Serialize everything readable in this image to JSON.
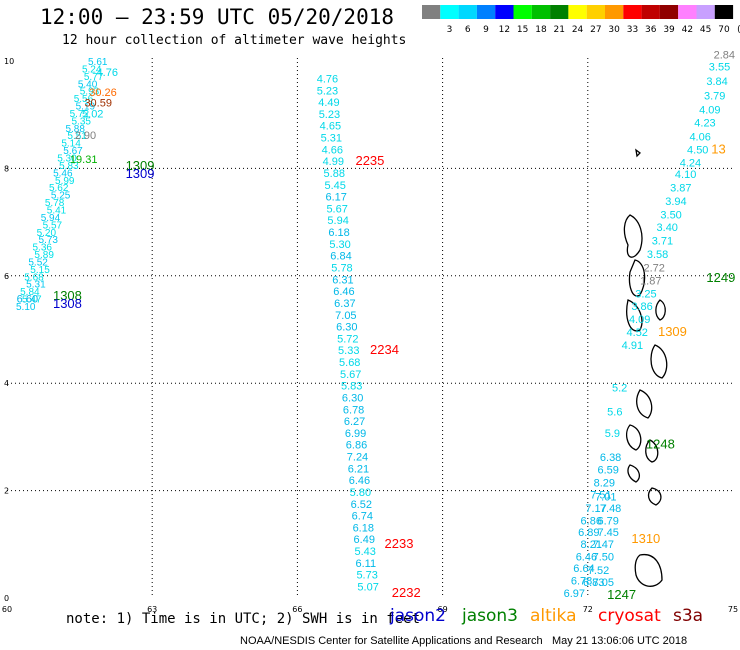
{
  "header": {
    "title": "12:00 – 23:59 UTC 05/20/2018",
    "subtitle": "12 hour collection of altimeter wave heights"
  },
  "colorbar": {
    "unit": "(ft)",
    "bins": [
      {
        "label": "",
        "color": "#808080"
      },
      {
        "label": "3",
        "color": "#00ffff"
      },
      {
        "label": "6",
        "color": "#00d8ff"
      },
      {
        "label": "9",
        "color": "#0080ff"
      },
      {
        "label": "12",
        "color": "#0000ff"
      },
      {
        "label": "15",
        "color": "#00ff00"
      },
      {
        "label": "18",
        "color": "#00c000"
      },
      {
        "label": "21",
        "color": "#008000"
      },
      {
        "label": "24",
        "color": "#ffff00"
      },
      {
        "label": "27",
        "color": "#ffd000"
      },
      {
        "label": "30",
        "color": "#ff9900"
      },
      {
        "label": "33",
        "color": "#ff0000"
      },
      {
        "label": "36",
        "color": "#c00000"
      },
      {
        "label": "39",
        "color": "#900000"
      },
      {
        "label": "42",
        "color": "#ff80ff"
      },
      {
        "label": "45",
        "color": "#c8a0ff"
      },
      {
        "label": "70",
        "color": "#000000"
      }
    ]
  },
  "axes": {
    "lon_ticks": [
      "60",
      "63",
      "66",
      "69",
      "72",
      "75"
    ],
    "lat_ticks": [
      "0",
      "2",
      "4",
      "6",
      "8",
      "10"
    ],
    "grid": true
  },
  "tracks": [
    {
      "id": "midpass",
      "sat": "cryosat",
      "points": [
        {
          "lon": 66.4,
          "lat": 9.6,
          "v": "4.76"
        },
        {
          "lon": 66.4,
          "lat": 9.38,
          "v": "5.23"
        },
        {
          "lon": 66.43,
          "lat": 9.16,
          "v": "4.49"
        },
        {
          "lon": 66.44,
          "lat": 8.94,
          "v": "5.23"
        },
        {
          "lon": 66.46,
          "lat": 8.72,
          "v": "4.65"
        },
        {
          "lon": 66.48,
          "lat": 8.5,
          "v": "5.31"
        },
        {
          "lon": 66.5,
          "lat": 8.28,
          "v": "4.66"
        },
        {
          "lon": 66.52,
          "lat": 8.06,
          "v": "4.99"
        },
        {
          "lon": 66.54,
          "lat": 7.84,
          "v": "5.88"
        },
        {
          "lon": 66.56,
          "lat": 7.62,
          "v": "5.45"
        },
        {
          "lon": 66.58,
          "lat": 7.4,
          "v": "6.17"
        },
        {
          "lon": 66.6,
          "lat": 7.18,
          "v": "5.67"
        },
        {
          "lon": 66.62,
          "lat": 6.96,
          "v": "5.94"
        },
        {
          "lon": 66.64,
          "lat": 6.74,
          "v": "6.18"
        },
        {
          "lon": 66.66,
          "lat": 6.52,
          "v": "5.30"
        },
        {
          "lon": 66.68,
          "lat": 6.3,
          "v": "6.84"
        },
        {
          "lon": 66.7,
          "lat": 6.08,
          "v": "5.78"
        },
        {
          "lon": 66.72,
          "lat": 5.86,
          "v": "6.31"
        },
        {
          "lon": 66.74,
          "lat": 5.64,
          "v": "6.46"
        },
        {
          "lon": 66.76,
          "lat": 5.42,
          "v": "6.37"
        },
        {
          "lon": 66.78,
          "lat": 5.2,
          "v": "7.05"
        },
        {
          "lon": 66.8,
          "lat": 4.98,
          "v": "6.30"
        },
        {
          "lon": 66.82,
          "lat": 4.76,
          "v": "5.72"
        },
        {
          "lon": 66.84,
          "lat": 4.54,
          "v": "5.33"
        },
        {
          "lon": 66.86,
          "lat": 4.32,
          "v": "5.68"
        },
        {
          "lon": 66.88,
          "lat": 4.1,
          "v": "5.67"
        },
        {
          "lon": 66.9,
          "lat": 3.88,
          "v": "5.83"
        },
        {
          "lon": 66.92,
          "lat": 3.66,
          "v": "6.30"
        },
        {
          "lon": 66.94,
          "lat": 3.44,
          "v": "6.78"
        },
        {
          "lon": 66.96,
          "lat": 3.22,
          "v": "6.27"
        },
        {
          "lon": 66.98,
          "lat": 3.0,
          "v": "6.99"
        },
        {
          "lon": 67.0,
          "lat": 2.78,
          "v": "6.86"
        },
        {
          "lon": 67.02,
          "lat": 2.56,
          "v": "7.24"
        },
        {
          "lon": 67.04,
          "lat": 2.34,
          "v": "6.21"
        },
        {
          "lon": 67.06,
          "lat": 2.12,
          "v": "6.46"
        },
        {
          "lon": 67.08,
          "lat": 1.9,
          "v": "5.80"
        },
        {
          "lon": 67.1,
          "lat": 1.68,
          "v": "6.52"
        },
        {
          "lon": 67.12,
          "lat": 1.46,
          "v": "6.74"
        },
        {
          "lon": 67.14,
          "lat": 1.24,
          "v": "6.18"
        },
        {
          "lon": 67.16,
          "lat": 1.02,
          "v": "6.49"
        },
        {
          "lon": 67.18,
          "lat": 0.8,
          "v": "5.43"
        },
        {
          "lon": 67.2,
          "lat": 0.58,
          "v": "6.11"
        },
        {
          "lon": 67.22,
          "lat": 0.36,
          "v": "5.73"
        },
        {
          "lon": 67.24,
          "lat": 0.14,
          "v": "5.07"
        }
      ]
    },
    {
      "id": "eastpass",
      "sat": "cryosat",
      "points": [
        {
          "lon": 74.6,
          "lat": 10.05,
          "v": "2.84"
        },
        {
          "lon": 74.5,
          "lat": 9.82,
          "v": "3.55"
        },
        {
          "lon": 74.45,
          "lat": 9.55,
          "v": "3.84"
        },
        {
          "lon": 74.4,
          "lat": 9.28,
          "v": "3.79"
        },
        {
          "lon": 74.3,
          "lat": 9.02,
          "v": "4.09"
        },
        {
          "lon": 74.2,
          "lat": 8.78,
          "v": "4.23"
        },
        {
          "lon": 74.1,
          "lat": 8.52,
          "v": "4.06"
        },
        {
          "lon": 74.05,
          "lat": 8.28,
          "v": "4.50"
        },
        {
          "lon": 73.9,
          "lat": 8.04,
          "v": "4.24"
        },
        {
          "lon": 73.8,
          "lat": 7.82,
          "v": "4.10"
        },
        {
          "lon": 73.7,
          "lat": 7.57,
          "v": "3.87"
        },
        {
          "lon": 73.6,
          "lat": 7.32,
          "v": "3.94"
        },
        {
          "lon": 73.5,
          "lat": 7.07,
          "v": "3.50"
        },
        {
          "lon": 73.42,
          "lat": 6.83,
          "v": "3.40"
        },
        {
          "lon": 73.32,
          "lat": 6.58,
          "v": "3.71"
        },
        {
          "lon": 73.22,
          "lat": 6.33,
          "v": "3.58"
        },
        {
          "lon": 73.15,
          "lat": 6.08,
          "v": "2.72"
        },
        {
          "lon": 73.08,
          "lat": 5.84,
          "v": "1.87"
        },
        {
          "lon": 72.98,
          "lat": 5.6,
          "v": "3.25"
        },
        {
          "lon": 72.9,
          "lat": 5.36,
          "v": "3.86"
        },
        {
          "lon": 72.85,
          "lat": 5.12,
          "v": "4.09"
        },
        {
          "lon": 72.8,
          "lat": 4.88,
          "v": "4.52"
        },
        {
          "lon": 72.7,
          "lat": 4.64,
          "v": "4.91"
        },
        {
          "lon": 72.5,
          "lat": 3.85,
          "v": "5.2"
        },
        {
          "lon": 72.4,
          "lat": 3.4,
          "v": "5.6"
        },
        {
          "lon": 72.35,
          "lat": 3.0,
          "v": "5.9"
        },
        {
          "lon": 72.25,
          "lat": 2.55,
          "v": "6.38"
        },
        {
          "lon": 72.2,
          "lat": 2.32,
          "v": "6.59"
        },
        {
          "lon": 72.12,
          "lat": 2.08,
          "v": "8.29"
        },
        {
          "lon": 72.05,
          "lat": 1.85,
          "v": "7.51"
        },
        {
          "lon": 72.15,
          "lat": 1.82,
          "v": "7.01"
        },
        {
          "lon": 71.95,
          "lat": 1.6,
          "v": "7.17"
        },
        {
          "lon": 72.25,
          "lat": 1.6,
          "v": "7.48"
        },
        {
          "lon": 71.85,
          "lat": 1.37,
          "v": "6.86"
        },
        {
          "lon": 72.2,
          "lat": 1.37,
          "v": "6.79"
        },
        {
          "lon": 71.8,
          "lat": 1.15,
          "v": "6.89"
        },
        {
          "lon": 71.85,
          "lat": 0.93,
          "v": "8.21"
        },
        {
          "lon": 72.2,
          "lat": 1.15,
          "v": "7.45"
        },
        {
          "lon": 72.1,
          "lat": 0.93,
          "v": "7.47"
        },
        {
          "lon": 71.75,
          "lat": 0.7,
          "v": "6.46"
        },
        {
          "lon": 71.7,
          "lat": 0.48,
          "v": "6.64"
        },
        {
          "lon": 72.1,
          "lat": 0.7,
          "v": "7.50"
        },
        {
          "lon": 71.65,
          "lat": 0.25,
          "v": "6.78"
        },
        {
          "lon": 72.0,
          "lat": 0.45,
          "v": "7.52"
        },
        {
          "lon": 71.9,
          "lat": 0.22,
          "v": "6.83"
        },
        {
          "lon": 72.1,
          "lat": 0.22,
          "v": "7.05"
        },
        {
          "lon": 71.5,
          "lat": 0.02,
          "v": "6.97"
        }
      ]
    },
    {
      "id": "westpass",
      "sat": "cryosat",
      "points": [
        {
          "lon": 61.85,
          "lat": 9.72,
          "v": "4.76"
        },
        {
          "lon": 61.7,
          "lat": 9.35,
          "v": "30.26"
        },
        {
          "lon": 61.6,
          "lat": 9.15,
          "v": "30.59"
        },
        {
          "lon": 61.55,
          "lat": 8.95,
          "v": "5.02"
        },
        {
          "lon": 61.4,
          "lat": 8.55,
          "v": "2.90"
        },
        {
          "lon": 61.3,
          "lat": 8.1,
          "v": "19.31"
        },
        {
          "lon": 60.2,
          "lat": 5.5,
          "v": "6.60"
        }
      ]
    }
  ],
  "pass_labels": [
    {
      "lon": 67.2,
      "lat": 8.06,
      "text": "2235",
      "color": "#ff0000"
    },
    {
      "lon": 67.5,
      "lat": 4.54,
      "text": "2234",
      "color": "#ff0000"
    },
    {
      "lon": 67.8,
      "lat": 0.93,
      "text": "2233",
      "color": "#ff0000"
    },
    {
      "lon": 67.95,
      "lat": 0.02,
      "text": "2232",
      "color": "#ff0000"
    },
    {
      "lon": 62.45,
      "lat": 7.97,
      "text": "1309",
      "color": "#008000"
    },
    {
      "lon": 62.45,
      "lat": 7.82,
      "text": "1309",
      "color": "#0000cd"
    },
    {
      "lon": 60.95,
      "lat": 5.55,
      "text": "1308",
      "color": "#008000"
    },
    {
      "lon": 60.95,
      "lat": 5.4,
      "text": "1308",
      "color": "#0000cd"
    },
    {
      "lon": 73.45,
      "lat": 4.88,
      "text": "1309",
      "color": "#ff9900"
    },
    {
      "lon": 73.2,
      "lat": 2.78,
      "text": "1248",
      "color": "#008000"
    },
    {
      "lon": 74.45,
      "lat": 5.88,
      "text": "1249",
      "color": "#008000"
    },
    {
      "lon": 74.55,
      "lat": 8.28,
      "text": "13",
      "color": "#ff9900"
    },
    {
      "lon": 72.9,
      "lat": 1.02,
      "text": "1310",
      "color": "#ff9900"
    },
    {
      "lon": 72.4,
      "lat": -0.02,
      "text": "1247",
      "color": "#008000"
    }
  ],
  "note": "note: 1) Time is in UTC; 2) SWH is in feet",
  "satellites": [
    {
      "name": "jason2",
      "color": "#0000cd"
    },
    {
      "name": "jason3",
      "color": "#008000"
    },
    {
      "name": "altika",
      "color": "#ff9900"
    },
    {
      "name": "cryosat",
      "color": "#ff0000"
    },
    {
      "name": "s3a",
      "color": "#800000"
    }
  ],
  "footer": {
    "credit": "NOAA/NESDIS Center for Satellite Applications and Research",
    "generated": "May 21 13:06:06 UTC 2018"
  }
}
